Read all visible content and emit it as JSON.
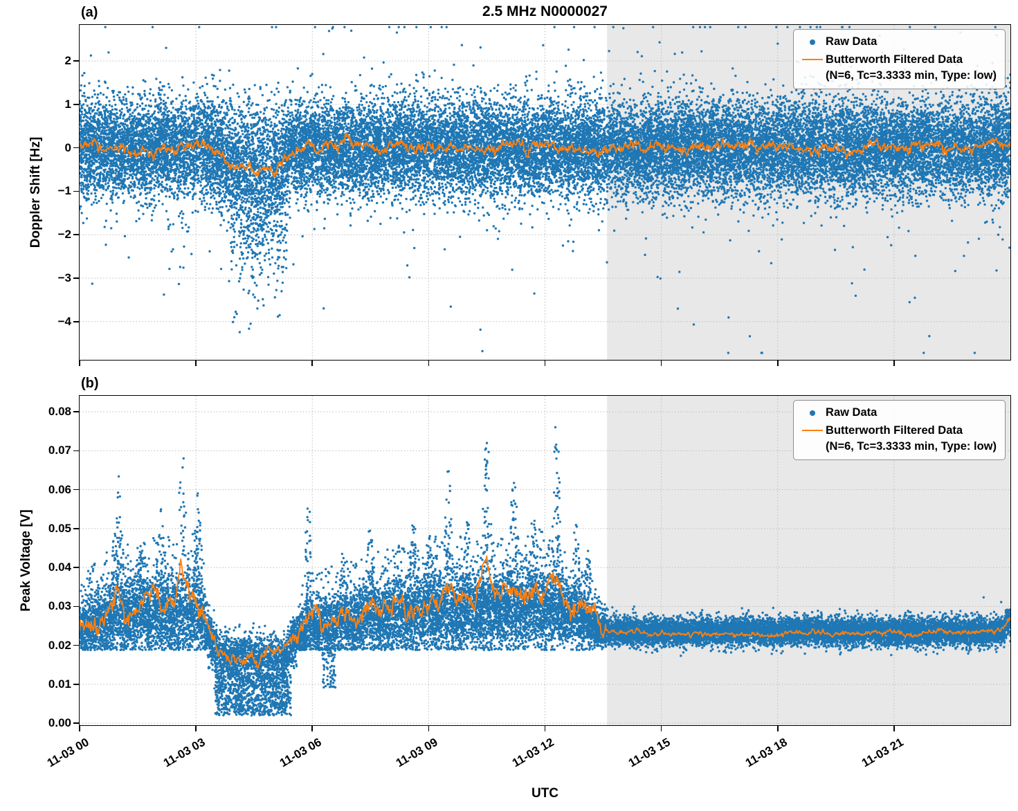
{
  "title": "2.5 MHz N0000027",
  "xlabel": "UTC",
  "colors": {
    "raw": "#1f77b4",
    "filtered": "#ff7f0e",
    "shade": "#e8e8e8",
    "grid": "#bbbbbb",
    "spine": "#000000",
    "background": "#ffffff"
  },
  "panels": [
    {
      "tag": "(a)",
      "ylabel": "Doppler Shift [Hz]",
      "legend": {
        "raw_label": "Raw Data",
        "filtered_label": "Butterworth Filtered Data",
        "filtered_sub": "(N=6, Tc=3.3333 min, Type: low)"
      }
    },
    {
      "tag": "(b)",
      "ylabel": "Peak Voltage [V]",
      "legend": {
        "raw_label": "Raw Data",
        "filtered_label": "Butterworth Filtered Data",
        "filtered_sub": "(N=6, Tc=3.3333 min, Type: low)"
      }
    }
  ],
  "chart_data": [
    {
      "type": "scatter+line",
      "panel": "(a)",
      "title": "2.5 MHz N0000027",
      "xlabel": "UTC",
      "ylabel": "Doppler Shift [Hz]",
      "x_units": "hours on 11-03 (UTC)",
      "xlim": [
        0,
        24
      ],
      "ylim": [
        -4.88,
        2.83
      ],
      "xticks": {
        "values": [
          0,
          3,
          6,
          9,
          12,
          15,
          18,
          21
        ],
        "labels": [
          "11-03 00",
          "11-03 03",
          "11-03 06",
          "11-03 09",
          "11-03 12",
          "11-03 15",
          "11-03 18",
          "11-03 21"
        ]
      },
      "yticks": {
        "values": [
          2,
          1,
          0,
          -1,
          -2,
          -3,
          -4
        ],
        "labels": [
          "2",
          "1",
          "0",
          "−1",
          "−2",
          "−3",
          "−4"
        ]
      },
      "grid": true,
      "legend_loc": "upper right",
      "shaded_region": [
        13.6,
        24
      ],
      "series": [
        {
          "name": "Raw Data",
          "type": "scatter",
          "color": "#1f77b4",
          "marker_size": 1.7,
          "n_points": 28000,
          "band_envelope_t_mean_sigma": [
            [
              0,
              0,
              0.55
            ],
            [
              3.4,
              0,
              0.56
            ],
            [
              3.8,
              -0.3,
              0.68
            ],
            [
              4.2,
              -0.45,
              0.75
            ],
            [
              5.1,
              -0.45,
              0.75
            ],
            [
              5.35,
              0,
              0.55
            ],
            [
              24,
              0,
              0.55
            ]
          ],
          "outlier_prob": 0.015,
          "outlier_sigma_mult": [
            2,
            4.6
          ],
          "plume": {
            "t_range": [
              3.9,
              5.35
            ],
            "prob": 0.22,
            "mean_offset": -1.2,
            "sigma": 0.85
          },
          "early_trail": {
            "t_range": [
              2.2,
              3.1
            ],
            "prob": 0.02,
            "base": -1.4,
            "spread": 1.4
          },
          "deep_points": {
            "t_range": [
              3.9,
              5.2
            ],
            "prob": 0.004,
            "base": -3.2,
            "spread": 1.35
          },
          "clamp": [
            -4.72,
            2.78
          ]
        },
        {
          "name": "Butterworth Filtered Data (N=6, Tc=3.3333 min, Type: low)",
          "type": "line",
          "color": "#ff7f0e",
          "line_width": 1.8,
          "keyframes": [
            [
              0,
              0.02
            ],
            [
              0.5,
              -0.02
            ],
            [
              1,
              0.03
            ],
            [
              1.5,
              0
            ],
            [
              2,
              0.02
            ],
            [
              2.5,
              -0.03
            ],
            [
              3,
              0.03
            ],
            [
              3.4,
              0.02
            ],
            [
              3.7,
              -0.1
            ],
            [
              3.9,
              -0.45
            ],
            [
              4.1,
              -0.5
            ],
            [
              4.3,
              -0.45
            ],
            [
              4.55,
              -0.55
            ],
            [
              4.8,
              -0.5
            ],
            [
              5,
              -0.62
            ],
            [
              5.2,
              -0.5
            ],
            [
              5.35,
              -0.05
            ],
            [
              5.8,
              0.02
            ],
            [
              6.5,
              -0.02
            ],
            [
              7,
              0.03
            ],
            [
              8,
              0
            ],
            [
              9,
              0.02
            ],
            [
              10,
              -0.02
            ],
            [
              11,
              0.02
            ],
            [
              12,
              0.05
            ],
            [
              13,
              0.02
            ],
            [
              14,
              0.03
            ],
            [
              15,
              0
            ],
            [
              16,
              0.02
            ],
            [
              17,
              0
            ],
            [
              18,
              0.03
            ],
            [
              19,
              0.01
            ],
            [
              20,
              0.04
            ],
            [
              21,
              0.02
            ],
            [
              22,
              0.03
            ],
            [
              23,
              0.02
            ],
            [
              24,
              0.08
            ]
          ],
          "noise_amp": 0.13,
          "sample_step_hours": 0.015
        }
      ]
    },
    {
      "type": "scatter+line",
      "panel": "(b)",
      "xlabel": "UTC",
      "ylabel": "Peak Voltage [V]",
      "x_units": "hours on 11-03 (UTC)",
      "xlim": [
        0,
        24
      ],
      "ylim": [
        -0.0005,
        0.0841
      ],
      "xticks": {
        "values": [
          0,
          3,
          6,
          9,
          12,
          15,
          18,
          21
        ],
        "labels": [
          "11-03 00",
          "11-03 03",
          "11-03 06",
          "11-03 09",
          "11-03 12",
          "11-03 15",
          "11-03 18",
          "11-03 21"
        ]
      },
      "yticks": {
        "values": [
          0,
          0.01,
          0.02,
          0.03,
          0.04,
          0.05,
          0.06,
          0.07,
          0.08
        ],
        "labels": [
          "0.00",
          "0.01",
          "0.02",
          "0.03",
          "0.04",
          "0.05",
          "0.06",
          "0.07",
          "0.08"
        ]
      },
      "grid": true,
      "legend_loc": "upper right",
      "shaded_region": [
        13.6,
        24
      ],
      "series": [
        {
          "name": "Raw Data",
          "type": "scatter",
          "color": "#1f77b4",
          "marker_size": 1.7,
          "n_points": 26000,
          "band_envelope_t_mean_sigma": [
            [
              0,
              0.024,
              0.003
            ],
            [
              0.5,
              0.026,
              0.0045
            ],
            [
              1,
              0.028,
              0.005
            ],
            [
              3.1,
              0.028,
              0.005
            ],
            [
              3.4,
              0.021,
              0.003
            ],
            [
              3.6,
              0.017,
              0.0028
            ],
            [
              5.3,
              0.017,
              0.0028
            ],
            [
              5.6,
              0.022,
              0.003
            ],
            [
              6,
              0.0245,
              0.0035
            ],
            [
              7,
              0.026,
              0.004
            ],
            [
              8,
              0.027,
              0.0045
            ],
            [
              9,
              0.028,
              0.005
            ],
            [
              11,
              0.029,
              0.005
            ],
            [
              12,
              0.03,
              0.005
            ],
            [
              12.6,
              0.028,
              0.004
            ],
            [
              13.2,
              0.025,
              0.003
            ],
            [
              13.6,
              0.0235,
              0.0017
            ],
            [
              24,
              0.0235,
              0.0017
            ]
          ],
          "active_regions": [
            [
              0,
              3.3
            ],
            [
              5.6,
              13.6
            ]
          ],
          "quiet_start": 13.6,
          "floor_active": 0.0188,
          "tail_prob": 0.04,
          "spike_prob": 0.35,
          "spike_width_hours": 0.13,
          "spike_clusters": [
            [
              1,
              0.064
            ],
            [
              1.6,
              0.05
            ],
            [
              2.1,
              0.055
            ],
            [
              2.65,
              0.077
            ],
            [
              3.05,
              0.06
            ],
            [
              5.9,
              0.058
            ],
            [
              6.8,
              0.045
            ],
            [
              7.5,
              0.052
            ],
            [
              8.2,
              0.05
            ],
            [
              8.6,
              0.055
            ],
            [
              9,
              0.05
            ],
            [
              9.5,
              0.066
            ],
            [
              10,
              0.055
            ],
            [
              10.5,
              0.076
            ],
            [
              11.2,
              0.066
            ],
            [
              11.7,
              0.055
            ],
            [
              12.3,
              0.08
            ],
            [
              12.8,
              0.052
            ],
            [
              13.1,
              0.045
            ]
          ],
          "dip_cluster": {
            "t_range": [
              3.5,
              5.45
            ],
            "prob": 0.42,
            "min": 0.002,
            "max": 0.013
          },
          "second_dip": {
            "t_range": [
              6.25,
              6.6
            ],
            "prob": 0.2,
            "min": 0.009,
            "max": 0.02
          },
          "clamp": [
            0.0015,
            0.0805
          ]
        },
        {
          "name": "Butterworth Filtered Data (N=6, Tc=3.3333 min, Type: low)",
          "type": "line",
          "color": "#ff7f0e",
          "line_width": 1.8,
          "keyframes": [
            [
              0,
              0.0235
            ],
            [
              0.2,
              0.027
            ],
            [
              0.45,
              0.0245
            ],
            [
              0.7,
              0.028
            ],
            [
              0.95,
              0.0365
            ],
            [
              1.15,
              0.028
            ],
            [
              1.45,
              0.027
            ],
            [
              1.7,
              0.0305
            ],
            [
              1.95,
              0.0335
            ],
            [
              2.2,
              0.0285
            ],
            [
              2.45,
              0.031
            ],
            [
              2.6,
              0.043
            ],
            [
              2.75,
              0.032
            ],
            [
              2.95,
              0.0335
            ],
            [
              3.1,
              0.029
            ],
            [
              3.3,
              0.0235
            ],
            [
              3.55,
              0.019
            ],
            [
              3.8,
              0.0165
            ],
            [
              4.1,
              0.0155
            ],
            [
              4.4,
              0.0175
            ],
            [
              4.7,
              0.016
            ],
            [
              5,
              0.0175
            ],
            [
              5.25,
              0.019
            ],
            [
              5.5,
              0.0235
            ],
            [
              5.75,
              0.0235
            ],
            [
              5.95,
              0.028
            ],
            [
              6.2,
              0.0255
            ],
            [
              6.45,
              0.0235
            ],
            [
              6.7,
              0.027
            ],
            [
              6.95,
              0.0285
            ],
            [
              7.2,
              0.026
            ],
            [
              7.5,
              0.0305
            ],
            [
              7.75,
              0.027
            ],
            [
              8,
              0.028
            ],
            [
              8.25,
              0.0305
            ],
            [
              8.5,
              0.0275
            ],
            [
              8.75,
              0.0295
            ],
            [
              9,
              0.0275
            ],
            [
              9.25,
              0.031
            ],
            [
              9.5,
              0.037
            ],
            [
              9.75,
              0.031
            ],
            [
              10,
              0.0335
            ],
            [
              10.2,
              0.031
            ],
            [
              10.45,
              0.0435
            ],
            [
              10.65,
              0.033
            ],
            [
              10.9,
              0.0315
            ],
            [
              11.15,
              0.035
            ],
            [
              11.4,
              0.0315
            ],
            [
              11.65,
              0.0335
            ],
            [
              11.9,
              0.0315
            ],
            [
              12.1,
              0.034
            ],
            [
              12.35,
              0.036
            ],
            [
              12.6,
              0.0315
            ],
            [
              12.85,
              0.0305
            ],
            [
              13.1,
              0.0285
            ],
            [
              13.35,
              0.026
            ],
            [
              13.6,
              0.024
            ],
            [
              14,
              0.0232
            ],
            [
              15,
              0.023
            ],
            [
              16,
              0.0232
            ],
            [
              17,
              0.023
            ],
            [
              18,
              0.0232
            ],
            [
              19,
              0.023
            ],
            [
              20,
              0.0233
            ],
            [
              21,
              0.0235
            ],
            [
              22,
              0.023
            ],
            [
              23,
              0.0233
            ],
            [
              23.6,
              0.0235
            ],
            [
              24,
              0.027
            ]
          ],
          "noise_amp_active": 0.0026,
          "noise_amp_quiet": 0.0007,
          "dip_amp": 0.0016,
          "sample_step_hours": 0.015
        }
      ]
    }
  ]
}
